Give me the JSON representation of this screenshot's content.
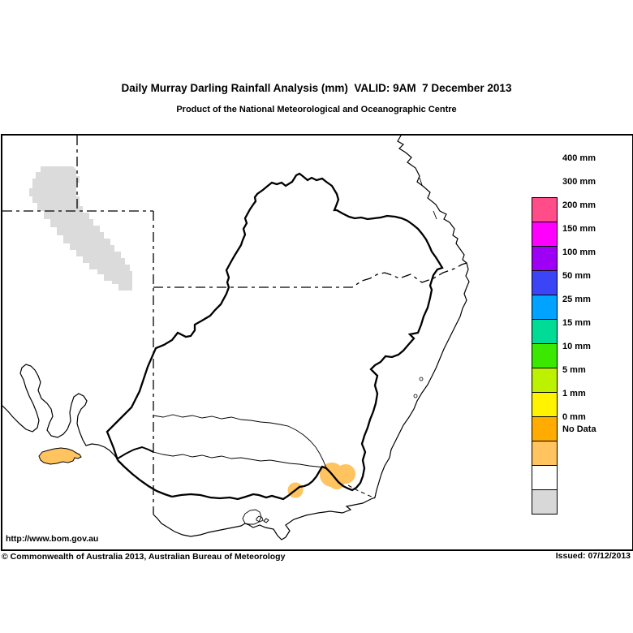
{
  "header": {
    "title": "Daily Murray Darling Rainfall Analysis (mm)  VALID: 9AM  7 December 2013",
    "subtitle": "Product of the National Meteorological and Oceanographic Centre"
  },
  "footer": {
    "url": "http://www.bom.gov.au",
    "copyright": "© Commonwealth of Australia 2013, Australian Bureau of Meteorology",
    "issued": "Issued: 07/12/2013"
  },
  "legend": {
    "items": [
      {
        "label": "400 mm",
        "color": "#FF4D8A"
      },
      {
        "label": "300 mm",
        "color": "#FF00FF"
      },
      {
        "label": "200 mm",
        "color": "#9D00F5"
      },
      {
        "label": "150 mm",
        "color": "#3C45F5"
      },
      {
        "label": "100 mm",
        "color": "#00A3FF"
      },
      {
        "label": "50 mm",
        "color": "#00DC96"
      },
      {
        "label": "25 mm",
        "color": "#3AE800"
      },
      {
        "label": "15 mm",
        "color": "#BCF200"
      },
      {
        "label": "10 mm",
        "color": "#FFF300"
      },
      {
        "label": "5 mm",
        "color": "#FFAB00"
      },
      {
        "label": "1 mm",
        "color": "#FFC35F"
      },
      {
        "label": "0 mm",
        "color": "#FFFFFF"
      },
      {
        "label": "No Data",
        "color": "#D8D8D8"
      }
    ]
  },
  "map": {
    "regions": [
      {
        "name": "no-data-region",
        "value": "No Data",
        "color": "#DBDBDB"
      },
      {
        "name": "kangaroo-island-rainfall",
        "value": "1 mm",
        "color": "#FFC35F"
      },
      {
        "name": "southwest-victoria-rainfall",
        "value": "1 mm",
        "color": "#FFC35F"
      },
      {
        "name": "northeast-victoria-rainfall",
        "value": "1 mm",
        "color": "#FFC35F"
      }
    ]
  }
}
